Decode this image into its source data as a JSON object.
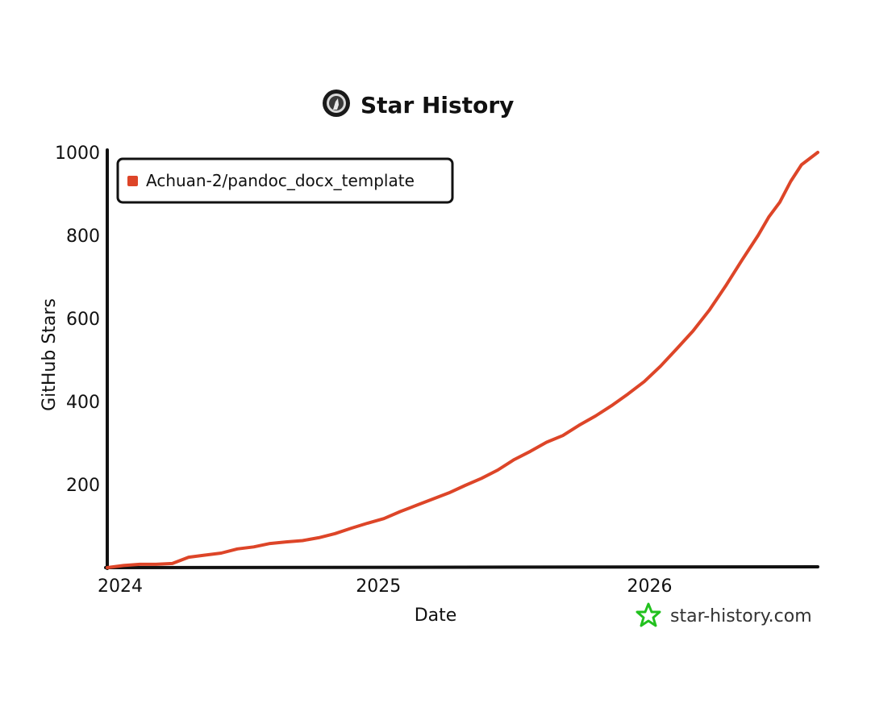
{
  "chart_data": {
    "type": "line",
    "title": "Star History",
    "xlabel": "Date",
    "ylabel": "GitHub Stars",
    "xlim": [
      2024.0,
      2026.62
    ],
    "ylim": [
      0,
      1000
    ],
    "x_ticks": [
      {
        "value": 2024,
        "label": "2024"
      },
      {
        "value": 2025,
        "label": "2025"
      },
      {
        "value": 2026,
        "label": "2026"
      }
    ],
    "y_ticks": [
      {
        "value": 200,
        "label": "200"
      },
      {
        "value": 400,
        "label": "400"
      },
      {
        "value": 600,
        "label": "600"
      },
      {
        "value": 800,
        "label": "800"
      },
      {
        "value": 1000,
        "label": "1000"
      }
    ],
    "grid": false,
    "legend_position": "top-left",
    "series": [
      {
        "name": "Achuan-2/pandoc_docx_template",
        "color": "#dd4528",
        "points": [
          [
            2024.0,
            0
          ],
          [
            2024.06,
            5
          ],
          [
            2024.12,
            8
          ],
          [
            2024.18,
            8
          ],
          [
            2024.24,
            10
          ],
          [
            2024.3,
            25
          ],
          [
            2024.36,
            30
          ],
          [
            2024.42,
            35
          ],
          [
            2024.48,
            45
          ],
          [
            2024.54,
            50
          ],
          [
            2024.6,
            58
          ],
          [
            2024.66,
            62
          ],
          [
            2024.72,
            65
          ],
          [
            2024.78,
            72
          ],
          [
            2024.84,
            82
          ],
          [
            2024.9,
            95
          ],
          [
            2024.96,
            107
          ],
          [
            2025.02,
            118
          ],
          [
            2025.08,
            135
          ],
          [
            2025.14,
            150
          ],
          [
            2025.2,
            165
          ],
          [
            2025.26,
            180
          ],
          [
            2025.32,
            198
          ],
          [
            2025.38,
            215
          ],
          [
            2025.44,
            235
          ],
          [
            2025.5,
            260
          ],
          [
            2025.56,
            280
          ],
          [
            2025.62,
            302
          ],
          [
            2025.68,
            318
          ],
          [
            2025.74,
            343
          ],
          [
            2025.8,
            365
          ],
          [
            2025.86,
            390
          ],
          [
            2025.92,
            418
          ],
          [
            2025.98,
            448
          ],
          [
            2026.04,
            485
          ],
          [
            2026.1,
            527
          ],
          [
            2026.16,
            570
          ],
          [
            2026.22,
            620
          ],
          [
            2026.28,
            678
          ],
          [
            2026.34,
            740
          ],
          [
            2026.4,
            800
          ],
          [
            2026.44,
            845
          ],
          [
            2026.48,
            880
          ],
          [
            2026.52,
            930
          ],
          [
            2026.56,
            970
          ],
          [
            2026.62,
            1000
          ]
        ]
      }
    ]
  },
  "watermark": {
    "text": "star-history.com",
    "icon": "star-outline-icon",
    "icon_color": "#22c11e"
  },
  "title_icon": "github-avatar-icon"
}
